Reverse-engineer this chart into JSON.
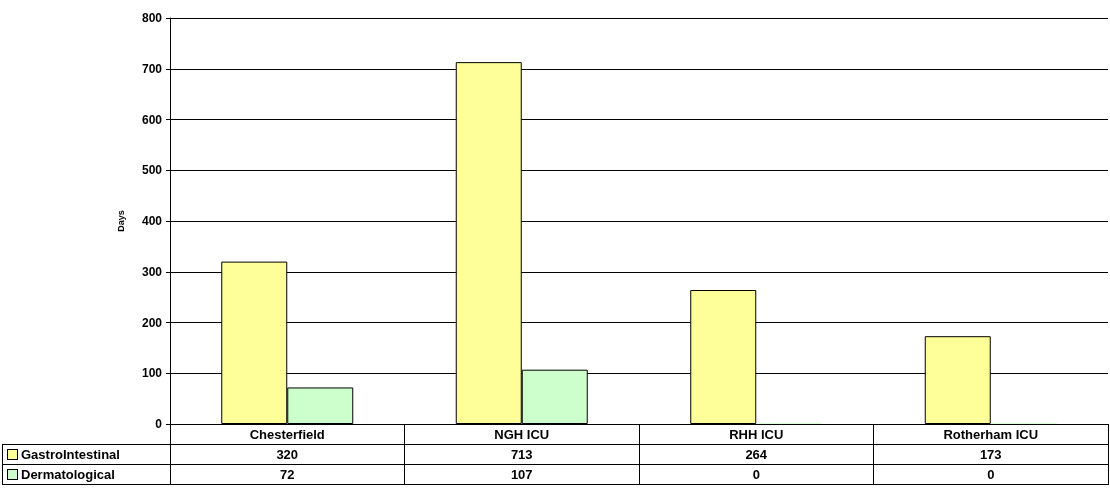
{
  "chart_data": {
    "type": "bar",
    "ylabel": "Days",
    "categories": [
      "Chesterfield",
      "NGH ICU",
      "RHH ICU",
      "Rotherham ICU"
    ],
    "series": [
      {
        "name": "GastroIntestinal",
        "color": "#ffff99",
        "values": [
          320,
          713,
          264,
          173
        ]
      },
      {
        "name": "Dermatological",
        "color": "#ccffcc",
        "values": [
          72,
          107,
          0,
          0
        ]
      }
    ],
    "ylim": [
      0,
      800
    ],
    "yticks": [
      0,
      100,
      200,
      300,
      400,
      500,
      600,
      700,
      800
    ],
    "grid": "y",
    "data_labels": true,
    "legend": "bottom"
  }
}
